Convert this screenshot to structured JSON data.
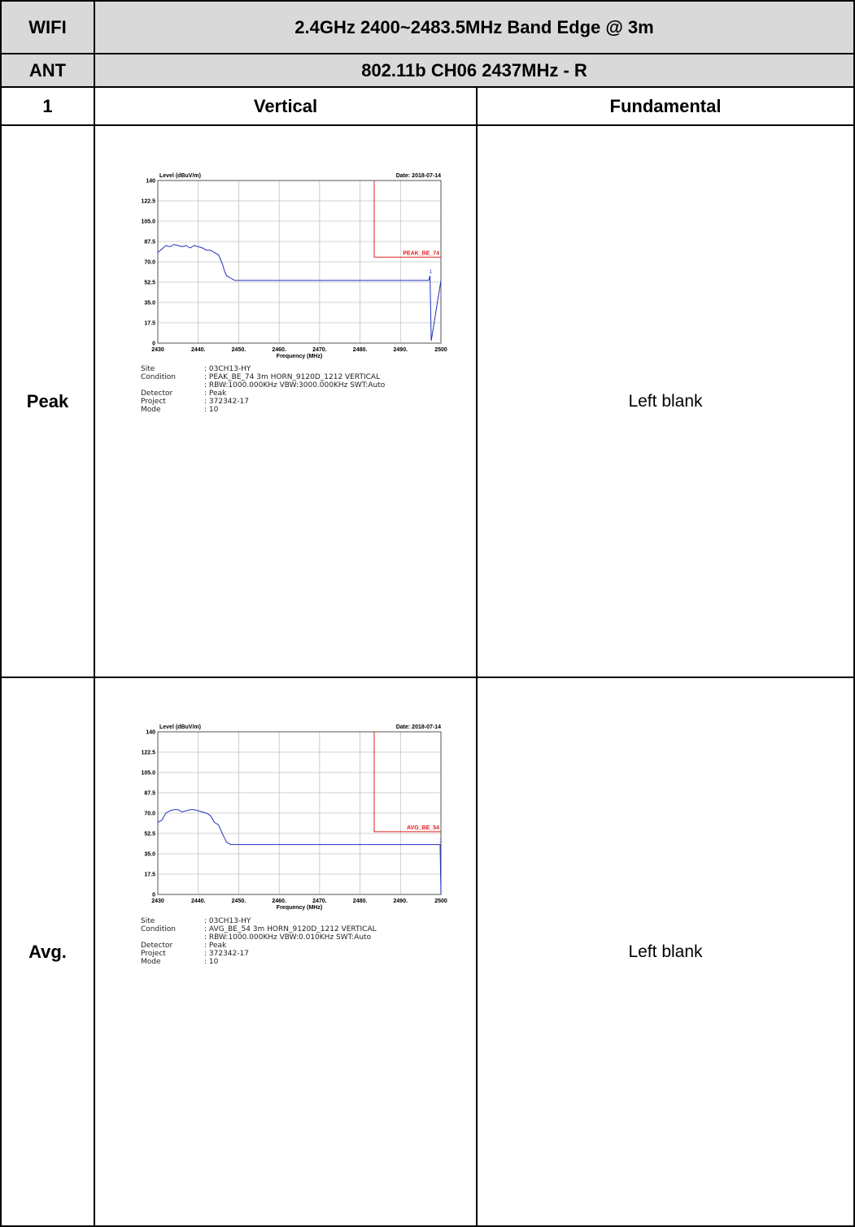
{
  "table": {
    "row1": {
      "label": "WIFI",
      "title": "2.4GHz 2400~2483.5MHz Band Edge @ 3m"
    },
    "row2": {
      "label": "ANT",
      "title": "802.11b CH06 2437MHz - R"
    },
    "row3": {
      "label": "1",
      "col1": "Vertical",
      "col2": "Fundamental"
    },
    "peak": {
      "label": "Peak",
      "right": "Left blank"
    },
    "avg": {
      "label": "Avg.",
      "right": "Left blank"
    }
  },
  "colors": {
    "header_bg": "#d9d9d9",
    "trace": "#1f2fbf",
    "limit": "#e02020",
    "grid": "#c0c0c0"
  },
  "chart_data": [
    {
      "type": "line",
      "ylabel": "Level (dBuV/m)",
      "xlabel": "Frequency (MHz)",
      "date": "Date: 2018-07-14",
      "xlim": [
        2430,
        2500
      ],
      "ylim": [
        0,
        140
      ],
      "x_ticks": [
        "2430",
        "2440.",
        "2450.",
        "2460.",
        "2470.",
        "2480.",
        "2490.",
        "2500"
      ],
      "y_ticks": [
        "0",
        "17.5",
        "35.0",
        "52.5",
        "70.0",
        "87.5",
        "105.0",
        "122.5",
        "140"
      ],
      "grid": true,
      "limit_label": "PEAK_BE_74",
      "limit": {
        "x_start": 2483.5,
        "x_end": 2500,
        "level": 74
      },
      "marker_label": "1",
      "series": [
        {
          "x": [
            2430,
            2431,
            2432,
            2433,
            2434,
            2435,
            2436,
            2437,
            2438,
            2439,
            2440,
            2441,
            2442,
            2443,
            2444,
            2445,
            2446,
            2446.5,
            2447,
            2448,
            2449,
            2450,
            2455,
            2460,
            2465,
            2470,
            2475,
            2480,
            2485,
            2490,
            2495,
            2497,
            2497.3,
            2497.6,
            2500
          ],
          "y": [
            78,
            81,
            84,
            83,
            85,
            84,
            83,
            84,
            82,
            84,
            83,
            82,
            80,
            80,
            78,
            76,
            68,
            62,
            58,
            56,
            54,
            54,
            54,
            54,
            54,
            54,
            54,
            54,
            54,
            54,
            54,
            54,
            58,
            2,
            54
          ]
        }
      ],
      "info": [
        {
          "key": "Site",
          "value": ": 03CH13-HY"
        },
        {
          "key": "Condition",
          "value": ": PEAK_BE_74 3m HORN_9120D_1212 VERTICAL"
        },
        {
          "key": "",
          "value": ": RBW:1000.000KHz VBW:3000.000KHz SWT:Auto"
        },
        {
          "key": "Detector",
          "value": ": Peak"
        },
        {
          "key": "Project",
          "value": ": 372342-17"
        },
        {
          "key": "Mode",
          "value": ": 10"
        }
      ]
    },
    {
      "type": "line",
      "ylabel": "Level (dBuV/m)",
      "xlabel": "Frequency (MHz)",
      "date": "Date: 2018-07-14",
      "xlim": [
        2430,
        2500
      ],
      "ylim": [
        0,
        140
      ],
      "x_ticks": [
        "2430",
        "2440.",
        "2450.",
        "2460.",
        "2470.",
        "2480.",
        "2490.",
        "2500"
      ],
      "y_ticks": [
        "0",
        "17.5",
        "35.0",
        "52.5",
        "70.0",
        "87.5",
        "105.0",
        "122.5",
        "140"
      ],
      "grid": true,
      "limit_label": "AVG_BE_54",
      "limit": {
        "x_start": 2483.5,
        "x_end": 2500,
        "level": 54
      },
      "marker_label": "1",
      "series": [
        {
          "x": [
            2430,
            2431,
            2432,
            2433,
            2434,
            2435,
            2436,
            2437,
            2438,
            2439,
            2440,
            2441,
            2442,
            2443,
            2444,
            2445,
            2446,
            2447,
            2448,
            2450,
            2455,
            2460,
            2465,
            2470,
            2475,
            2480,
            2485,
            2490,
            2495,
            2499.8,
            2500
          ],
          "y": [
            62,
            64,
            70,
            72,
            73,
            73,
            71,
            72,
            73,
            73,
            72,
            71,
            70,
            68,
            62,
            60,
            52,
            45,
            43,
            43,
            43,
            43,
            43,
            43,
            43,
            43,
            43,
            43,
            43,
            43,
            0
          ]
        }
      ],
      "info": [
        {
          "key": "Site",
          "value": ": 03CH13-HY"
        },
        {
          "key": "Condition",
          "value": ": AVG_BE_54 3m HORN_9120D_1212 VERTICAL"
        },
        {
          "key": "",
          "value": ": RBW:1000.000KHz VBW:0.010KHz SWT:Auto"
        },
        {
          "key": "Detector",
          "value": ": Peak"
        },
        {
          "key": "Project",
          "value": ": 372342-17"
        },
        {
          "key": "Mode",
          "value": ": 10"
        }
      ]
    }
  ]
}
